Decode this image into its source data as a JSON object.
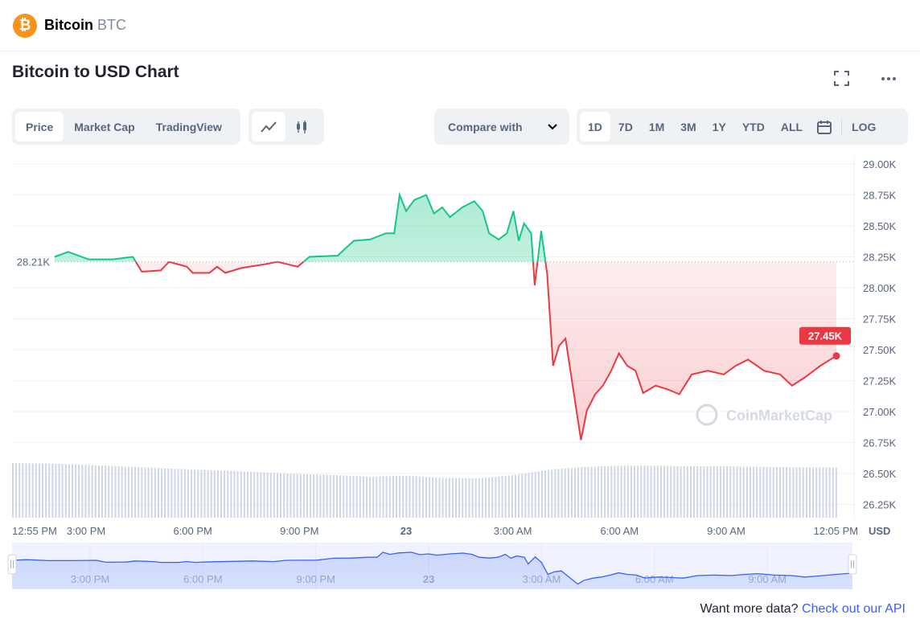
{
  "header": {
    "coin_name": "Bitcoin",
    "coin_symbol": "BTC",
    "logo_glyph": "₿"
  },
  "title": "Bitcoin to USD Chart",
  "toolbar": {
    "data_tabs": [
      {
        "label": "Price",
        "active": true
      },
      {
        "label": "Market Cap"
      },
      {
        "label": "TradingView"
      }
    ],
    "chart_types": [
      {
        "icon": "line-chart-icon",
        "active": true
      },
      {
        "icon": "candlestick-icon"
      }
    ],
    "compare_label": "Compare with",
    "ranges": [
      {
        "label": "1D",
        "active": true
      },
      {
        "label": "7D"
      },
      {
        "label": "1M"
      },
      {
        "label": "3M"
      },
      {
        "label": "1Y"
      },
      {
        "label": "YTD"
      },
      {
        "label": "ALL"
      }
    ],
    "calendar_icon": "calendar-icon",
    "log_label": "LOG",
    "fullscreen_icon": "fullscreen-icon",
    "more_icon": "more-icon"
  },
  "colors": {
    "up": "#16c784",
    "down": "#ea3943",
    "navigator": "#3861fb",
    "volume": "#cfd6e4"
  },
  "watermark": "CoinMarketCap",
  "footer": {
    "text": "Want more data?",
    "link": "Check out our API"
  },
  "chart_data": {
    "type": "line",
    "ylabel": "USD",
    "ylim": [
      26250,
      29000
    ],
    "yticks": [
      "29.00K",
      "28.75K",
      "28.50K",
      "28.25K",
      "28.00K",
      "27.75K",
      "27.50K",
      "27.25K",
      "27.00K",
      "26.75K",
      "26.50K",
      "26.25K"
    ],
    "ytick_values": [
      29000,
      28750,
      28500,
      28250,
      28000,
      27750,
      27500,
      27250,
      27000,
      26750,
      26500,
      26250
    ],
    "xticks": [
      {
        "label": "12:55 PM",
        "time": "22 12:55"
      },
      {
        "label": "3:00 PM",
        "time": "22 15:00"
      },
      {
        "label": "6:00 PM",
        "time": "22 18:00"
      },
      {
        "label": "9:00 PM",
        "time": "22 21:00"
      },
      {
        "label": "23",
        "time": "23 00:00",
        "bold": true
      },
      {
        "label": "3:00 AM",
        "time": "23 03:00"
      },
      {
        "label": "6:00 AM",
        "time": "23 06:00"
      },
      {
        "label": "9:00 AM",
        "time": "23 09:00"
      },
      {
        "label": "12:05 PM",
        "time": "23 12:05"
      }
    ],
    "navigator_ticks": [
      "3:00 PM",
      "6:00 PM",
      "9:00 PM",
      "23",
      "3:00 AM",
      "6:00 AM",
      "9:00 AM"
    ],
    "reference_label": "28.21K",
    "reference_value": 28210,
    "current_label": "27.45K",
    "current_value": 27450,
    "grid": true,
    "points": [
      [
        "22 14:07",
        28250
      ],
      [
        "22 14:30",
        28290
      ],
      [
        "22 15:04",
        28230
      ],
      [
        "22 15:45",
        28230
      ],
      [
        "22 16:19",
        28250
      ],
      [
        "22 16:34",
        28130
      ],
      [
        "22 17:06",
        28140
      ],
      [
        "22 17:20",
        28210
      ],
      [
        "22 17:50",
        28170
      ],
      [
        "22 18:00",
        28120
      ],
      [
        "22 18:28",
        28120
      ],
      [
        "22 18:41",
        28170
      ],
      [
        "22 18:55",
        28120
      ],
      [
        "22 19:22",
        28160
      ],
      [
        "22 20:02",
        28190
      ],
      [
        "22 20:23",
        28210
      ],
      [
        "22 20:57",
        28170
      ],
      [
        "22 21:17",
        28250
      ],
      [
        "22 22:05",
        28260
      ],
      [
        "22 22:18",
        28320
      ],
      [
        "22 22:32",
        28380
      ],
      [
        "22 22:59",
        28390
      ],
      [
        "22 23:26",
        28440
      ],
      [
        "22 23:40",
        28440
      ],
      [
        "22 23:49",
        28750
      ],
      [
        "23 00:00",
        28620
      ],
      [
        "23 00:14",
        28710
      ],
      [
        "23 00:34",
        28750
      ],
      [
        "23 00:47",
        28600
      ],
      [
        "23 01:01",
        28650
      ],
      [
        "23 01:14",
        28570
      ],
      [
        "23 01:35",
        28650
      ],
      [
        "23 01:55",
        28700
      ],
      [
        "23 02:09",
        28620
      ],
      [
        "23 02:20",
        28440
      ],
      [
        "23 02:36",
        28390
      ],
      [
        "23 02:50",
        28440
      ],
      [
        "23 03:01",
        28620
      ],
      [
        "23 03:10",
        28380
      ],
      [
        "23 03:19",
        28520
      ],
      [
        "23 03:31",
        28440
      ],
      [
        "23 03:37",
        28020
      ],
      [
        "23 03:48",
        28460
      ],
      [
        "23 03:58",
        28110
      ],
      [
        "23 04:08",
        27370
      ],
      [
        "23 04:18",
        27530
      ],
      [
        "23 04:29",
        27590
      ],
      [
        "23 04:41",
        27210
      ],
      [
        "23 04:55",
        26770
      ],
      [
        "23 05:05",
        27010
      ],
      [
        "23 05:19",
        27140
      ],
      [
        "23 05:32",
        27210
      ],
      [
        "23 05:46",
        27330
      ],
      [
        "23 05:59",
        27470
      ],
      [
        "23 06:13",
        27370
      ],
      [
        "23 06:27",
        27330
      ],
      [
        "23 06:40",
        27150
      ],
      [
        "23 07:01",
        27210
      ],
      [
        "23 07:21",
        27180
      ],
      [
        "23 07:41",
        27140
      ],
      [
        "23 08:02",
        27300
      ],
      [
        "23 08:29",
        27330
      ],
      [
        "23 08:56",
        27300
      ],
      [
        "23 09:16",
        27370
      ],
      [
        "23 09:37",
        27420
      ],
      [
        "23 10:04",
        27330
      ],
      [
        "23 10:31",
        27300
      ],
      [
        "23 10:51",
        27210
      ],
      [
        "23 11:11",
        27270
      ],
      [
        "23 11:39",
        27370
      ],
      [
        "23 12:06",
        27450
      ]
    ],
    "volume_relative": [
      1.0,
      0.99,
      0.97,
      0.94,
      0.91,
      0.88,
      0.86,
      0.83,
      0.8,
      0.78,
      0.75,
      0.77,
      0.73,
      0.72,
      0.78,
      0.88,
      0.93,
      0.95,
      0.95,
      0.94,
      0.94,
      0.93,
      0.92,
      0.92
    ]
  }
}
